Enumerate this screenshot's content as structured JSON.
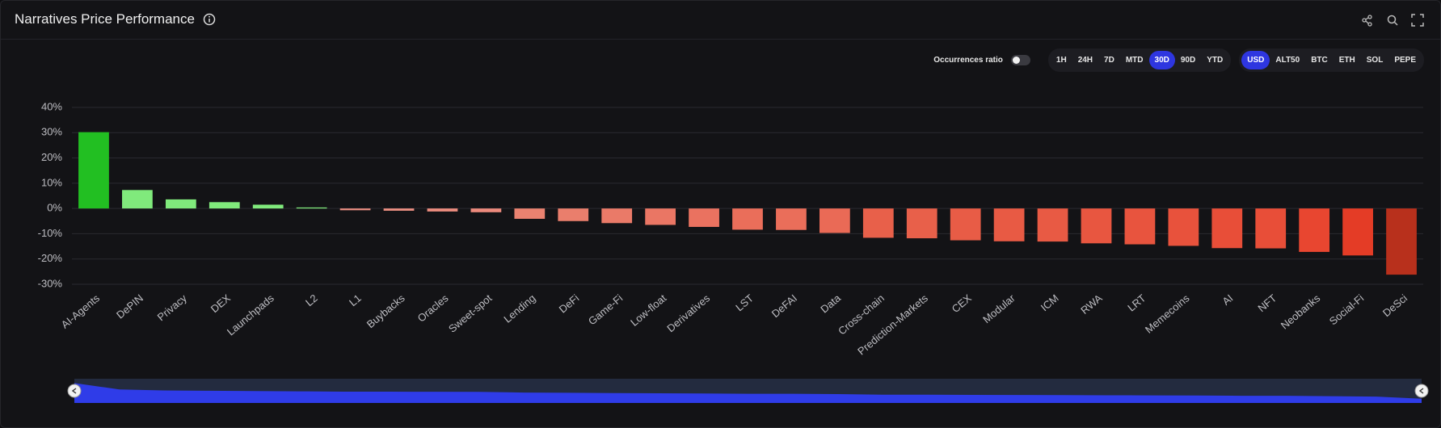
{
  "header": {
    "title": "Narratives Price Performance"
  },
  "controls": {
    "occurrences_label": "Occurrences ratio",
    "timeframes": [
      "1H",
      "24H",
      "7D",
      "MTD",
      "30D",
      "90D",
      "YTD"
    ],
    "currencies": [
      "USD",
      "ALT50",
      "BTC",
      "ETH",
      "SOL",
      "PEPE"
    ]
  },
  "chart_data": {
    "type": "bar",
    "categories": [
      "AI-Agents",
      "DePIN",
      "Privacy",
      "DEX",
      "Launchpads",
      "L2",
      "L1",
      "Buybacks",
      "Oracles",
      "Sweet-spot",
      "Lending",
      "DeFi",
      "Game-Fi",
      "Low-float",
      "Derivatives",
      "LST",
      "DeFAI",
      "Data",
      "Cross-chain",
      "Prediction-Markets",
      "CEX",
      "Modular",
      "ICM",
      "RWA",
      "LRT",
      "Memecoins",
      "AI",
      "NFT",
      "Neobanks",
      "Social-Fi",
      "DeSci"
    ],
    "values": [
      30.2,
      7.3,
      3.6,
      2.5,
      1.5,
      0.4,
      -0.7,
      -0.9,
      -1.2,
      -1.5,
      -4.1,
      -5,
      -5.8,
      -6.5,
      -7.3,
      -8.4,
      -8.5,
      -9.7,
      -11.6,
      -11.8,
      -12.6,
      -13,
      -13.1,
      -13.8,
      -14.2,
      -14.8,
      -15.7,
      -15.8,
      -17.2,
      -18.6,
      -26.2
    ],
    "colors": [
      "#22bf22",
      "#80ea7c",
      "#80ea7c",
      "#80ea7c",
      "#80ea7c",
      "#80ea7c",
      "#ec8f82",
      "#ec8f82",
      "#ec8c7e",
      "#ec8a7c",
      "#ea8270",
      "#ea7e6c",
      "#ea7a68",
      "#ea7664",
      "#ea7260",
      "#ea6e5a",
      "#ea6e5a",
      "#ea6a56",
      "#e8604a",
      "#e8604a",
      "#e85c46",
      "#e85a44",
      "#e85a44",
      "#e85640",
      "#e8543e",
      "#e8523c",
      "#e84e38",
      "#e84e38",
      "#e84630",
      "#e43c26",
      "#b8301c"
    ],
    "ylim": [
      -30,
      40
    ],
    "yticks": [
      {
        "value": -30,
        "label": "-30%"
      },
      {
        "value": -20,
        "label": "-20%"
      },
      {
        "value": -10,
        "label": "-10%"
      },
      {
        "value": 0,
        "label": "0%"
      },
      {
        "value": 10,
        "label": "10%"
      },
      {
        "value": 20,
        "label": "20%"
      },
      {
        "value": 30,
        "label": "30%"
      },
      {
        "value": 40,
        "label": "40%"
      }
    ],
    "grid": true
  }
}
